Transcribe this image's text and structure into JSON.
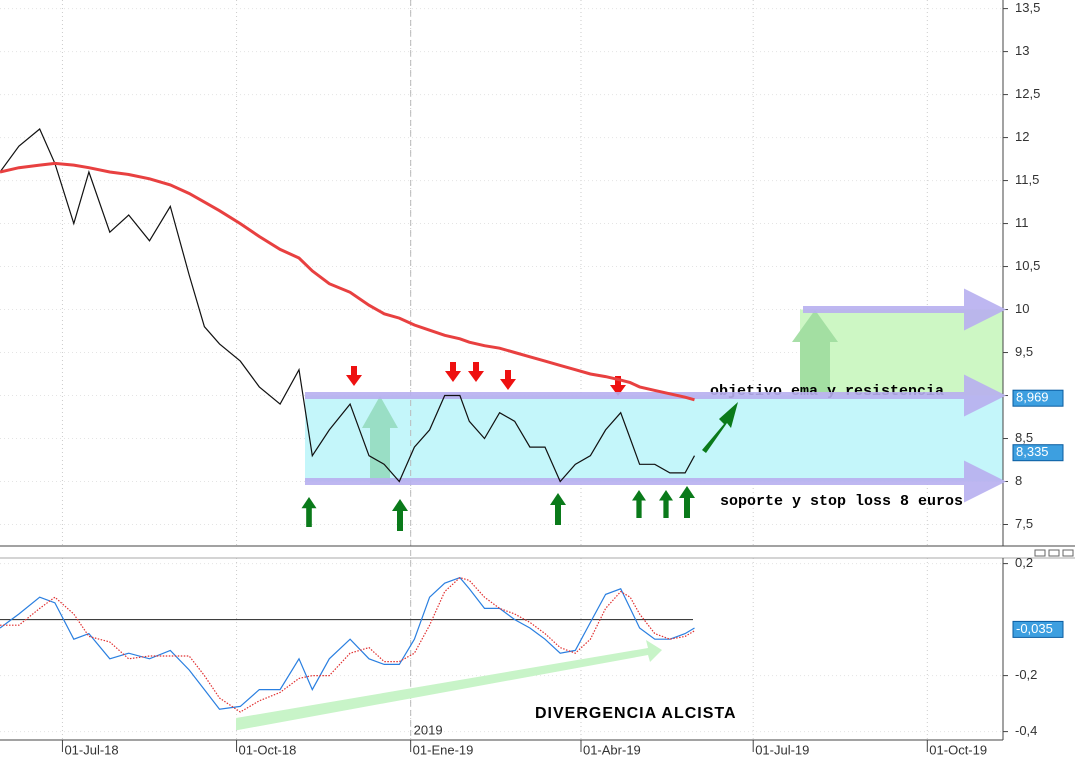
{
  "chart_data": [
    {
      "type": "line",
      "x": [
        "2018-05-29",
        "2018-06-08",
        "2018-06-19",
        "2018-06-27",
        "2018-07-07",
        "2018-07-15",
        "2018-07-26",
        "2018-08-05",
        "2018-08-16",
        "2018-08-27",
        "2018-09-06",
        "2018-09-14",
        "2018-09-22",
        "2018-10-03",
        "2018-10-13",
        "2018-10-24",
        "2018-11-03",
        "2018-11-10",
        "2018-11-19",
        "2018-11-30",
        "2018-12-10",
        "2018-12-18",
        "2018-12-26",
        "2019-01-03",
        "2019-01-11",
        "2019-01-19",
        "2019-01-27",
        "2019-02-01",
        "2019-02-09",
        "2019-02-17",
        "2019-02-25",
        "2019-03-05",
        "2019-03-13",
        "2019-03-21",
        "2019-03-29",
        "2019-04-06",
        "2019-04-14",
        "2019-04-22",
        "2019-04-27",
        "2019-05-02",
        "2019-05-10",
        "2019-05-18",
        "2019-05-26",
        "2019-05-31"
      ],
      "series": [
        {
          "color": "#111111",
          "values": [
            11.6,
            11.9,
            12.1,
            11.7,
            11.0,
            11.6,
            10.9,
            11.1,
            10.8,
            11.2,
            10.4,
            9.8,
            9.6,
            9.4,
            9.1,
            8.9,
            9.3,
            8.3,
            8.6,
            8.9,
            8.3,
            8.2,
            8.0,
            8.4,
            8.6,
            9.0,
            9.0,
            8.7,
            8.5,
            8.8,
            8.7,
            8.4,
            8.4,
            8.0,
            8.2,
            8.3,
            8.6,
            8.8,
            8.5,
            8.2,
            8.2,
            8.1,
            8.1,
            8.3
          ]
        },
        {
          "color": "#e84040",
          "values": [
            11.6,
            11.65,
            11.68,
            11.7,
            11.68,
            11.65,
            11.6,
            11.57,
            11.52,
            11.45,
            11.35,
            11.25,
            11.15,
            11.0,
            10.85,
            10.7,
            10.6,
            10.45,
            10.3,
            10.2,
            10.05,
            9.95,
            9.9,
            9.82,
            9.76,
            9.7,
            9.66,
            9.62,
            9.58,
            9.55,
            9.5,
            9.45,
            9.4,
            9.35,
            9.3,
            9.25,
            9.22,
            9.18,
            9.15,
            9.1,
            9.06,
            9.02,
            8.98,
            8.95
          ]
        }
      ],
      "xlim": [
        "2018-05-29",
        "2019-11-10"
      ],
      "ylim": [
        7.25,
        13.6
      ],
      "yticks": [
        {
          "value": 7.5,
          "label": "7,5"
        },
        8,
        {
          "value": 8.5,
          "label": "8,5"
        },
        9,
        {
          "value": 9.5,
          "label": "9,5"
        },
        10,
        {
          "value": 10.5,
          "label": "10,5"
        },
        11,
        {
          "value": 11.5,
          "label": "11,5"
        },
        12,
        {
          "value": 12.5,
          "label": "12,5"
        },
        13,
        {
          "value": 13.5,
          "label": "13,5"
        }
      ],
      "levels": [
        8,
        9,
        10
      ],
      "price_markers": [
        {
          "value": 8.969,
          "label": "8,969"
        },
        {
          "value": 8.335,
          "label": "8,335"
        }
      ],
      "annotations": [
        "objetivo ema y resistencia",
        "soporte y stop loss 8 euros"
      ]
    },
    {
      "type": "line",
      "x": [
        "2018-05-29",
        "2018-06-08",
        "2018-06-19",
        "2018-06-27",
        "2018-07-07",
        "2018-07-15",
        "2018-07-26",
        "2018-08-05",
        "2018-08-16",
        "2018-08-27",
        "2018-09-06",
        "2018-09-14",
        "2018-09-22",
        "2018-10-03",
        "2018-10-13",
        "2018-10-24",
        "2018-11-03",
        "2018-11-10",
        "2018-11-19",
        "2018-11-30",
        "2018-12-10",
        "2018-12-18",
        "2018-12-26",
        "2019-01-03",
        "2019-01-11",
        "2019-01-19",
        "2019-01-27",
        "2019-02-01",
        "2019-02-09",
        "2019-02-17",
        "2019-02-25",
        "2019-03-05",
        "2019-03-13",
        "2019-03-21",
        "2019-03-29",
        "2019-04-06",
        "2019-04-14",
        "2019-04-22",
        "2019-04-27",
        "2019-05-02",
        "2019-05-10",
        "2019-05-18",
        "2019-05-26",
        "2019-05-31"
      ],
      "series": [
        {
          "color": "#2a7fe0",
          "values": [
            -0.03,
            0.02,
            0.08,
            0.06,
            -0.07,
            -0.05,
            -0.14,
            -0.12,
            -0.14,
            -0.11,
            -0.18,
            -0.25,
            -0.32,
            -0.31,
            -0.25,
            -0.25,
            -0.14,
            -0.25,
            -0.14,
            -0.07,
            -0.14,
            -0.16,
            -0.16,
            -0.07,
            0.08,
            0.13,
            0.15,
            0.11,
            0.04,
            0.04,
            0.0,
            -0.03,
            -0.07,
            -0.12,
            -0.11,
            -0.01,
            0.09,
            0.11,
            0.04,
            -0.03,
            -0.07,
            -0.07,
            -0.05,
            -0.03
          ]
        },
        {
          "color": "#e03030",
          "dashed": true,
          "values": [
            -0.02,
            -0.02,
            0.04,
            0.08,
            0.02,
            -0.06,
            -0.08,
            -0.14,
            -0.13,
            -0.13,
            -0.13,
            -0.2,
            -0.28,
            -0.33,
            -0.29,
            -0.26,
            -0.21,
            -0.2,
            -0.2,
            -0.12,
            -0.1,
            -0.15,
            -0.15,
            -0.12,
            -0.02,
            0.1,
            0.15,
            0.14,
            0.08,
            0.04,
            0.02,
            -0.01,
            -0.05,
            -0.1,
            -0.12,
            -0.07,
            0.04,
            0.1,
            0.08,
            0.02,
            -0.05,
            -0.07,
            -0.06,
            -0.04
          ]
        }
      ],
      "xlim": [
        "2018-05-29",
        "2019-11-10"
      ],
      "ylim": [
        -0.43,
        0.22
      ],
      "yticks": [
        {
          "value": 0.2,
          "label": "0,2"
        },
        {
          "value": -0.2,
          "label": "-0,2"
        },
        {
          "value": -0.4,
          "label": "-0,4"
        }
      ],
      "zero_line": 0,
      "price_markers": [
        {
          "value": -0.035,
          "label": "-0,035"
        }
      ],
      "xticks": [
        {
          "value": "2018-07-01",
          "label": "01-Jul-18"
        },
        {
          "value": "2018-10-01",
          "label": "01-Oct-18"
        },
        {
          "value": "2019-01-01",
          "label": "01-Ene-19"
        },
        {
          "value": "2019-04-01",
          "label": "01-Abr-19"
        },
        {
          "value": "2019-07-01",
          "label": "01-Jul-19"
        },
        {
          "value": "2019-10-01",
          "label": "01-Oct-19"
        }
      ],
      "year_marker": {
        "value": "2019-01-01",
        "label": "2019"
      },
      "annotations": [
        "DIVERGENCIA ALCISTA"
      ]
    }
  ]
}
